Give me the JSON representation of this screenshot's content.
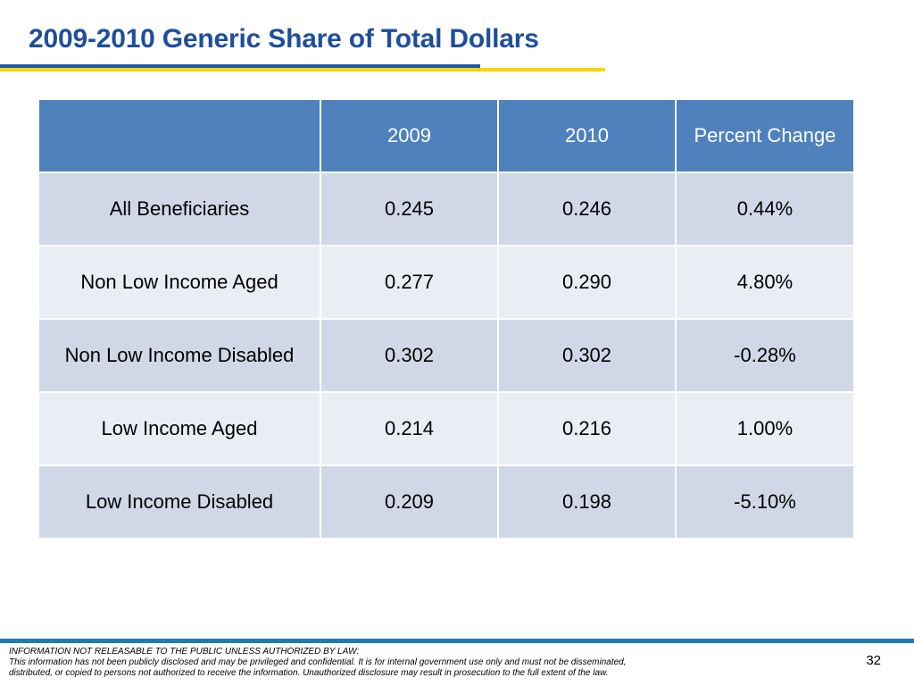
{
  "slide": {
    "title": "2009-2010 Generic Share of Total Dollars",
    "page_number": "32"
  },
  "table": {
    "headers": [
      "",
      "2009",
      "2010",
      "Percent Change"
    ],
    "rows": [
      [
        "All Beneficiaries",
        "0.245",
        "0.246",
        "0.44%"
      ],
      [
        "Non Low Income Aged",
        "0.277",
        "0.290",
        "4.80%"
      ],
      [
        "Non Low Income Disabled",
        "0.302",
        "0.302",
        "-0.28%"
      ],
      [
        "Low Income Aged",
        "0.214",
        "0.216",
        "1.00%"
      ],
      [
        "Low Income Disabled",
        "0.209",
        "0.198",
        "-5.10%"
      ]
    ]
  },
  "footer": {
    "lines": [
      "INFORMATION NOT RELEASABLE TO THE PUBLIC UNLESS AUTHORIZED BY LAW:",
      "This information has not been publicly disclosed and may be privileged and confidential.  It is for internal government use only and must not be disseminated,",
      "distributed, or copied to persons not authorized to receive the information.  Unauthorized disclosure may result in prosecution to the full extent of the law."
    ]
  },
  "colors": {
    "title": "#1f4e9c",
    "header_fill": "#4f81bd",
    "row_fill_dark": "#d0d8e8",
    "row_fill_light": "#e9edf4",
    "accent_blue": "#1f5a9e",
    "accent_yellow": "#ffd200",
    "footer_rule": "#1f7ab3"
  }
}
